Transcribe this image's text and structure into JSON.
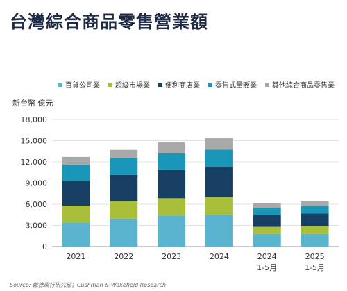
{
  "title": "台灣綜合商品零售營業額",
  "chart_data": {
    "type": "bar",
    "stacked": true,
    "categories": [
      [
        "2021"
      ],
      [
        "2022"
      ],
      [
        "2023"
      ],
      [
        "2024"
      ],
      [
        "2024",
        "1-5月"
      ],
      [
        "2025",
        "1-5月"
      ]
    ],
    "series": [
      {
        "name": "百貨公司業",
        "color": "#5ab3cf",
        "values": [
          3400,
          3950,
          4400,
          4450,
          1800,
          1800
        ]
      },
      {
        "name": "超級市場業",
        "color": "#a9bf3a",
        "values": [
          2400,
          2450,
          2450,
          2600,
          1000,
          1100
        ]
      },
      {
        "name": "便利商店業",
        "color": "#173e63",
        "values": [
          3500,
          3750,
          4000,
          4250,
          1700,
          1800
        ]
      },
      {
        "name": "零售式量販業",
        "color": "#1996b8",
        "values": [
          2300,
          2350,
          2350,
          2450,
          1000,
          1050
        ]
      },
      {
        "name": "其他綜合商品零售業",
        "color": "#a9a9a9",
        "values": [
          1100,
          1200,
          1600,
          1600,
          650,
          650
        ]
      }
    ],
    "ylabel": "新台幣 億元",
    "ylim": [
      0,
      18000
    ],
    "yticks": [
      "0",
      "3,000",
      "6,000",
      "9,000",
      "12,000",
      "15,000",
      "18,000"
    ],
    "grid": true,
    "legend": "top"
  },
  "source": "Source: 戴德梁行研究部；Cushman & Wakefield Research"
}
